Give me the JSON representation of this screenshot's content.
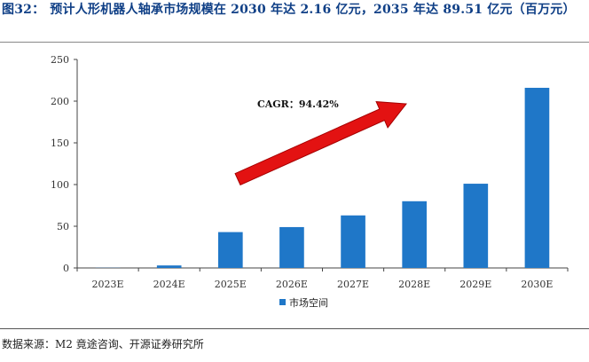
{
  "figure": {
    "label": "图32：",
    "title": "预计人形机器人轴承市场规模在 2030 年达 2.16 亿元，2035 年达 89.51 亿元（百万元）",
    "source": "数据来源：M2 竟途咨询、开源证券研究所"
  },
  "chart_data": {
    "type": "bar",
    "categories": [
      "2023E",
      "2024E",
      "2025E",
      "2026E",
      "2027E",
      "2028E",
      "2029E",
      "2030E"
    ],
    "series": [
      {
        "name": "市场空间",
        "values": [
          0.2,
          3,
          43,
          49,
          63,
          80,
          101,
          216
        ],
        "color": "#1f77c8"
      }
    ],
    "y_ticks": [
      0,
      50,
      100,
      150,
      200,
      250
    ],
    "ylim": [
      0,
      250
    ],
    "grid": false,
    "legend_position": "bottom",
    "annotation": {
      "text": "CAGR：94.42%",
      "arrow_color": "#e31212"
    }
  }
}
